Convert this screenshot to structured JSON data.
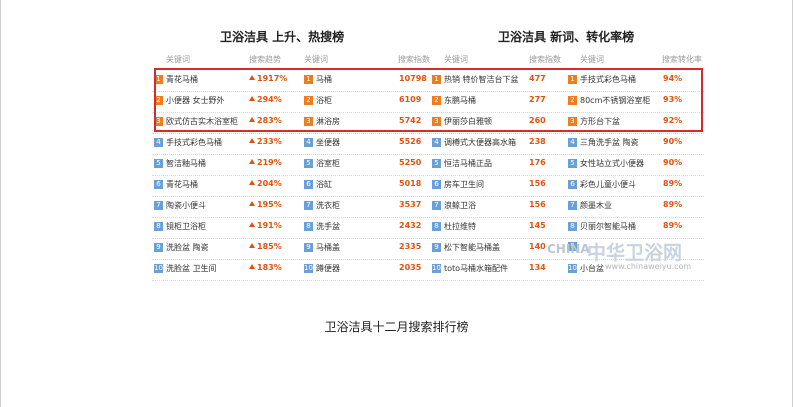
{
  "left_title": "卫浴洁具 上升、热搜榜",
  "right_title": "卫浴洁具 新词、转化率榜",
  "headers": {
    "keyword": "关键词",
    "trend": "搜索趋势",
    "index": "搜索指数",
    "conversion": "搜索转化率"
  },
  "rows": [
    {
      "r1": "1",
      "k1": "青花马桶",
      "t1": "1917%",
      "r2": "1",
      "k2": "马桶",
      "n2": "10798",
      "r3": "1",
      "k3": "热销 特价智洁台下盆",
      "n3": "477",
      "r4": "1",
      "k4": "手技式彩色马桶",
      "p4": "94%"
    },
    {
      "r1": "2",
      "k1": "小便器 女士野外",
      "t1": "294%",
      "r2": "2",
      "k2": "浴柜",
      "n2": "6109",
      "r3": "2",
      "k3": "东鹏马桶",
      "n3": "277",
      "r4": "2",
      "k4": "80cm不锈钢浴室柜",
      "p4": "93%"
    },
    {
      "r1": "3",
      "k1": "欧式仿古实木浴室柜",
      "t1": "283%",
      "r2": "3",
      "k2": "淋浴房",
      "n2": "5742",
      "r3": "3",
      "k3": "伊丽莎白雅顿",
      "n3": "260",
      "r4": "3",
      "k4": "方形台下盆",
      "p4": "92%"
    },
    {
      "r1": "4",
      "k1": "手技式彩色马桶",
      "t1": "233%",
      "r2": "4",
      "k2": "坐便器",
      "n2": "5526",
      "r3": "4",
      "k3": "调樽式大便器高水箱",
      "n3": "238",
      "r4": "4",
      "k4": "三角洗手盆 陶瓷",
      "p4": "90%"
    },
    {
      "r1": "5",
      "k1": "智洁釉马桶",
      "t1": "219%",
      "r2": "5",
      "k2": "浴室柜",
      "n2": "5250",
      "r3": "5",
      "k3": "恒洁马桶正品",
      "n3": "176",
      "r4": "5",
      "k4": "女性站立式小便器",
      "p4": "90%"
    },
    {
      "r1": "6",
      "k1": "青花马桶",
      "t1": "204%",
      "r2": "6",
      "k2": "浴缸",
      "n2": "5018",
      "r3": "6",
      "k3": "房车卫生间",
      "n3": "156",
      "r4": "6",
      "k4": "彩色儿童小便斗",
      "p4": "89%"
    },
    {
      "r1": "7",
      "k1": "陶瓷小便斗",
      "t1": "195%",
      "r2": "7",
      "k2": "洗衣柜",
      "n2": "3537",
      "r3": "7",
      "k3": "浪鲸卫浴",
      "n3": "156",
      "r4": "7",
      "k4": "颜墨木业",
      "p4": "89%"
    },
    {
      "r1": "8",
      "k1": "镜柜卫浴柜",
      "t1": "191%",
      "r2": "8",
      "k2": "洗手盆",
      "n2": "2432",
      "r3": "8",
      "k3": "杜拉维特",
      "n3": "145",
      "r4": "8",
      "k4": "贝丽尔智能马桶",
      "p4": "89%"
    },
    {
      "r1": "9",
      "k1": "洗脸盆 陶瓷",
      "t1": "185%",
      "r2": "9",
      "k2": "马桶盖",
      "n2": "2335",
      "r3": "9",
      "k3": "松下智能马桶盖",
      "n3": "140",
      "r4": "9",
      "k4": "",
      "p4": ""
    },
    {
      "r1": "10",
      "k1": "洗脸盆 卫生间",
      "t1": "183%",
      "r2": "10",
      "k2": "蹲便器",
      "n2": "2035",
      "r3": "10",
      "k3": "toto马桶水箱配件",
      "n3": "134",
      "r4": "10",
      "k4": "小台盆",
      "p4": ""
    }
  ],
  "watermark": {
    "en": "CHINA",
    "cn": "中华卫浴网",
    "url": "www.chinaweiyu.com"
  },
  "caption": "卫浴洁具十二月搜索排行榜"
}
